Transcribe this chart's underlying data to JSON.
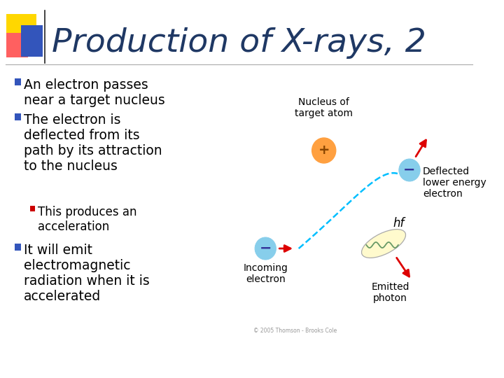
{
  "title": "Production of X-rays, 2",
  "title_color": "#1F3864",
  "title_fontsize": 34,
  "bg_color": "#FFFFFF",
  "bullet1": "An electron passes\nnear a target nucleus",
  "bullet2": "The electron is\ndeflected from its\npath by its attraction\nto the nucleus",
  "sub_bullet": "This produces an\nacceleration",
  "bullet3": "It will emit\nelectromagnetic\nradiation when it is\naccelerated",
  "bullet_color": "#000000",
  "bullet_fontsize": 13.5,
  "sub_bullet_fontsize": 12.0,
  "accent_line_color": "#4169E1",
  "diagram_nucleus_color": "#FFA040",
  "diagram_electron_color": "#87CEEB",
  "diagram_photon_color": "#FFFACD",
  "diagram_arrow_color": "#DD0000",
  "diagram_dashed_color": "#00BFFF",
  "yellow_color": "#FFD700",
  "red_color": "#FF6060",
  "blue_color": "#3355BB"
}
